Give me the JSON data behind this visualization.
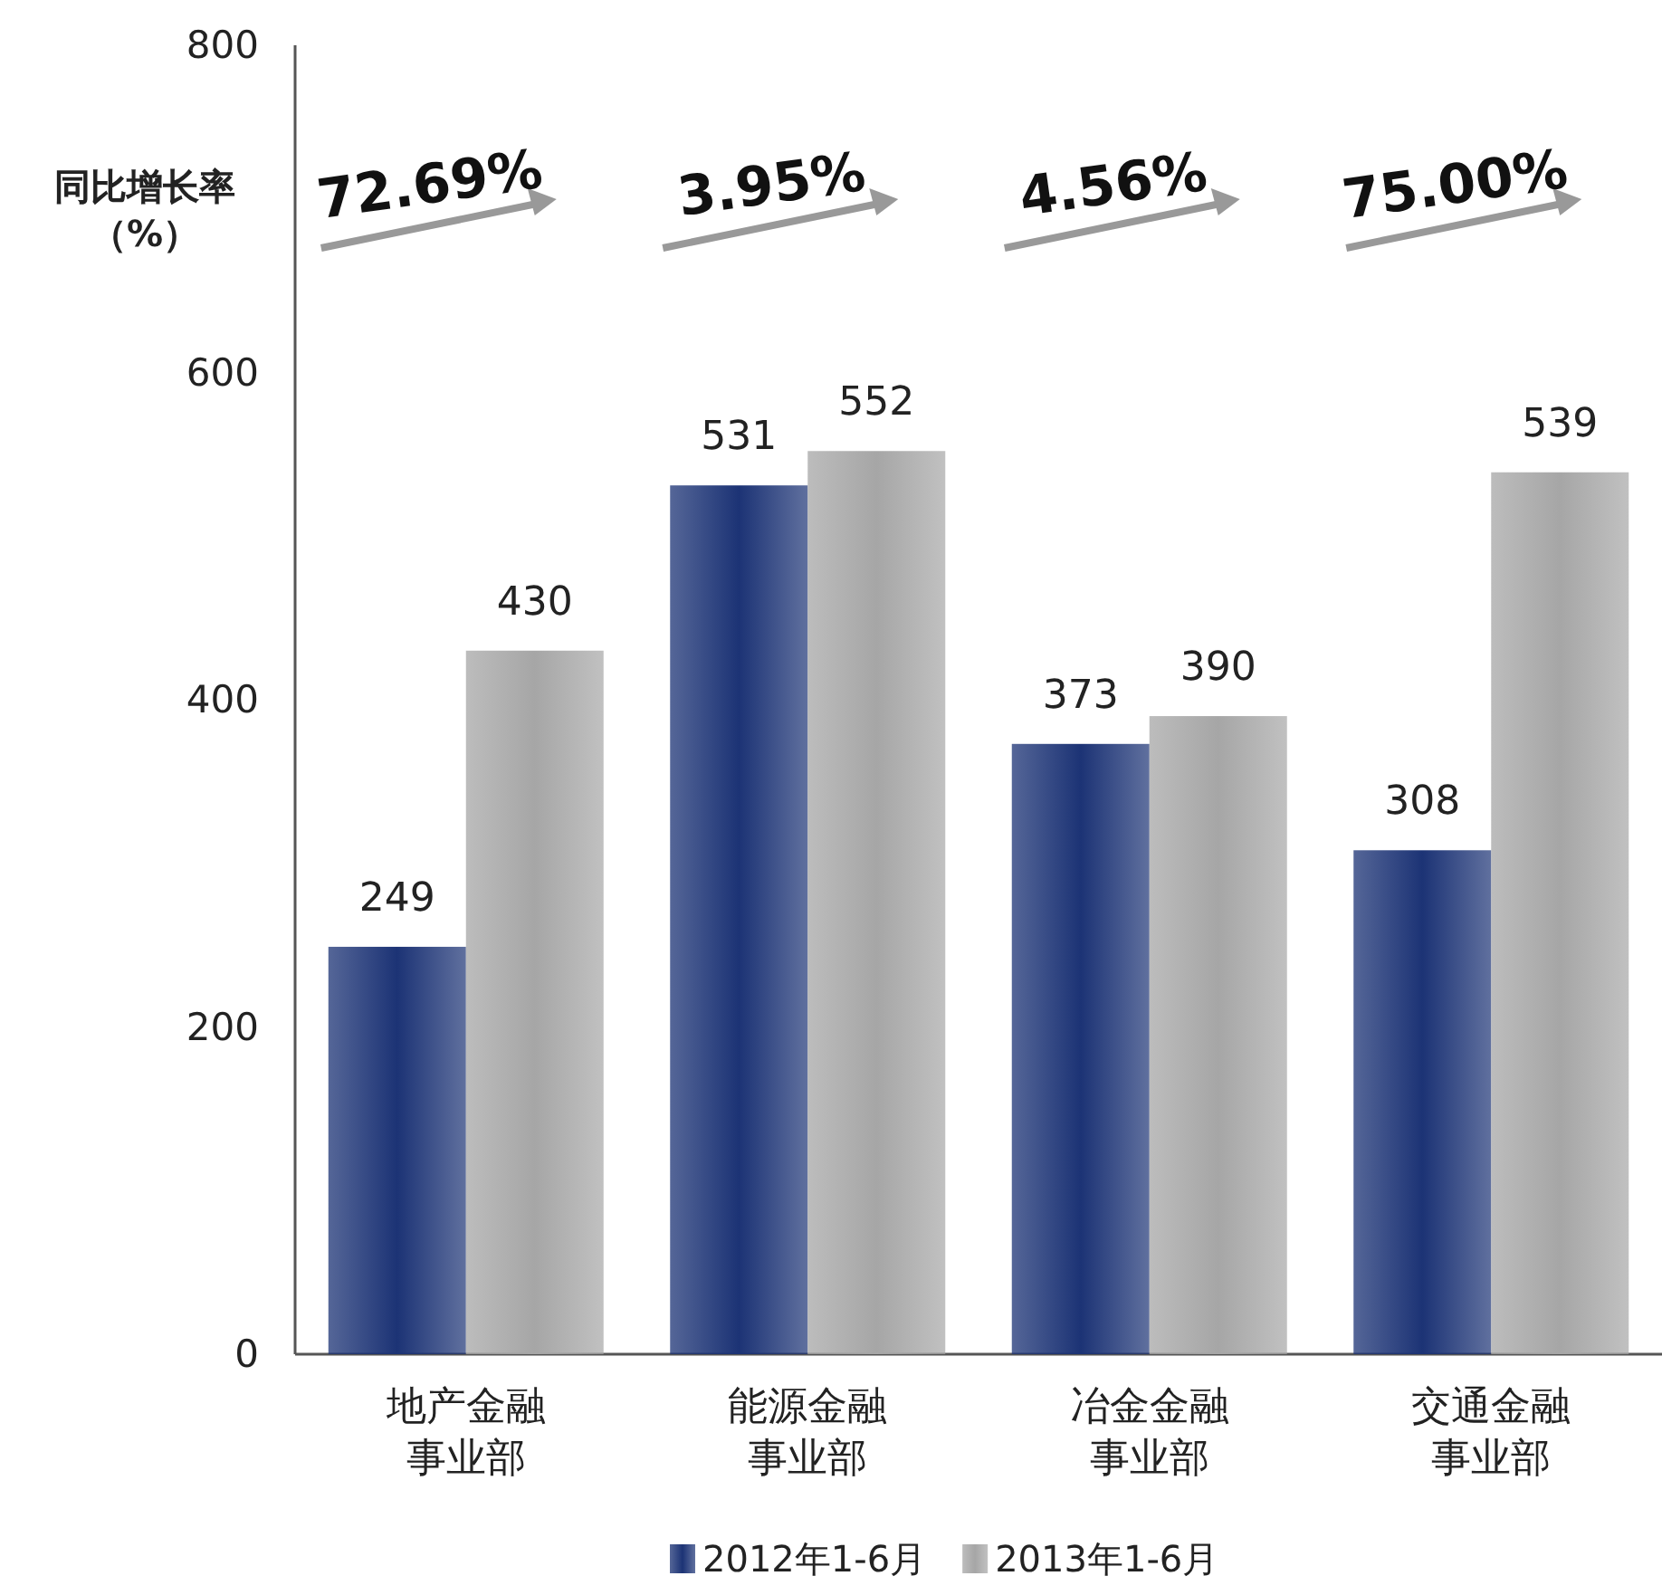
{
  "chart_data": {
    "type": "bar",
    "categories": [
      "地产金融事业部",
      "能源金融事业部",
      "冶金金融事业部",
      "交通金融事业部"
    ],
    "series": [
      {
        "name": "2012年1-6月",
        "color": "#1c3375",
        "values": [
          249,
          531,
          373,
          308
        ]
      },
      {
        "name": "2013年1-6月",
        "color": "#a6a6a6",
        "values": [
          430,
          552,
          390,
          539
        ]
      }
    ],
    "ylim": [
      0,
      800
    ],
    "yticks": [
      0,
      200,
      400,
      600,
      800
    ],
    "data_labels": true,
    "grid": false,
    "legend": "bottom",
    "annotations": [
      "同比增长率（%）",
      "72.69%",
      "3.95%",
      "4.56%",
      "75.00%"
    ]
  }
}
